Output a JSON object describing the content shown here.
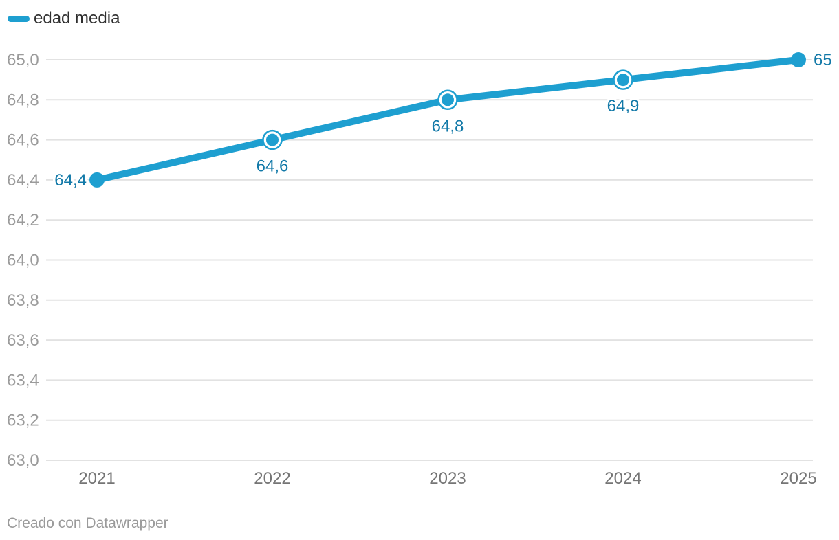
{
  "legend": {
    "label": "edad media"
  },
  "footer": {
    "credit": "Creado con Datawrapper"
  },
  "colors": {
    "line": "#1e9fd0",
    "data_label": "#1279a8",
    "grid": "#e2e2e2",
    "y_tick_text": "#9b9b9b",
    "x_tick_text": "#757575",
    "legend_text": "#2e2e2e",
    "footer_text": "#9a9a9a",
    "background": "#ffffff"
  },
  "chart_data": {
    "type": "line",
    "title": "",
    "xlabel": "",
    "ylabel": "",
    "categories": [
      "2021",
      "2022",
      "2023",
      "2024",
      "2025"
    ],
    "series": [
      {
        "name": "edad media",
        "values": [
          64.4,
          64.6,
          64.8,
          64.9,
          65.0
        ]
      }
    ],
    "data_labels": [
      "64,4",
      "64,6",
      "64,8",
      "64,9",
      "65"
    ],
    "data_label_positions": [
      "left",
      "below",
      "below",
      "below",
      "right"
    ],
    "marker_styles": [
      "solid",
      "ring",
      "ring",
      "ring",
      "solid"
    ],
    "ylim": [
      63.0,
      65.0
    ],
    "ytick_step": 0.2,
    "yticks": [
      "65,0",
      "64,8",
      "64,6",
      "64,4",
      "64,2",
      "64,0",
      "63,8",
      "63,6",
      "63,4",
      "63,2",
      "63,0"
    ],
    "decimal_separator": ",",
    "grid": true,
    "legend_position": "top-left"
  }
}
